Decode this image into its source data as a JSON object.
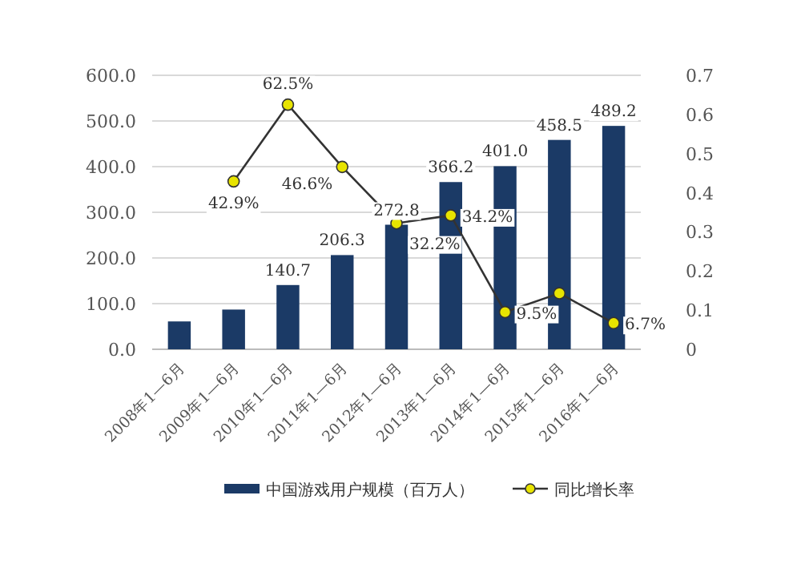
{
  "chart_data": {
    "type": "bar",
    "categories": [
      "2008年1—6月",
      "2009年1—6月",
      "2010年1—6月",
      "2011年1—6月",
      "2012年1—6月",
      "2013年1—6月",
      "2014年1—6月",
      "2015年1—6月",
      "2016年1—6月"
    ],
    "series": [
      {
        "name": "中国游戏用户规模（百万人）",
        "color": "#1b3a66",
        "values": [
          61,
          87,
          140.7,
          206.3,
          272.8,
          366.2,
          401.0,
          458.5,
          489.2
        ],
        "value_labels": [
          null,
          null,
          "140.7",
          "206.3",
          "272.8",
          "366.2",
          "401.0",
          "458.5",
          "489.2"
        ]
      },
      {
        "name": "同比增长率",
        "type": "line",
        "axis": "y2",
        "color": "#e8e400",
        "marker": "circle",
        "values": [
          null,
          0.429,
          0.625,
          0.466,
          0.322,
          0.342,
          0.095,
          0.143,
          0.067
        ],
        "value_labels": [
          null,
          "42.9%",
          "62.5%",
          "46.6%",
          "32.2%",
          "34.2%",
          "9.5%",
          null,
          "6.7%"
        ]
      }
    ],
    "ylim": [
      0,
      600
    ],
    "yticks": [
      {
        "value": 0,
        "label": "0.0"
      },
      {
        "value": 100,
        "label": "100.0"
      },
      {
        "value": 200,
        "label": "200.0"
      },
      {
        "value": 300,
        "label": "300.0"
      },
      {
        "value": 400,
        "label": "400.0"
      },
      {
        "value": 500,
        "label": "500.0"
      },
      {
        "value": 600,
        "label": "600.0"
      }
    ],
    "y2lim": [
      0,
      0.7
    ],
    "y2ticks": [
      0,
      0.1,
      0.2,
      0.3,
      0.4,
      0.5,
      0.6,
      0.7
    ],
    "grid": "y",
    "legend": "bottom"
  }
}
